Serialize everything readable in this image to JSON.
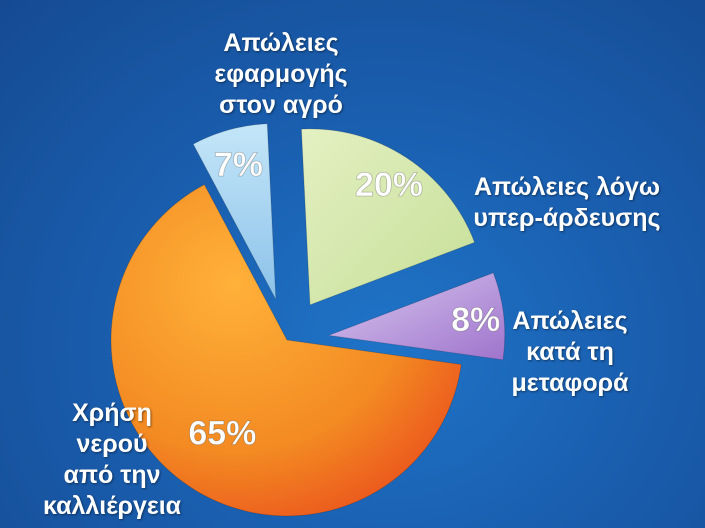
{
  "chart_data": {
    "type": "pie",
    "title": "",
    "slices": [
      {
        "pct_label": "7%",
        "value": 7,
        "label": [
          "Απώλειες",
          "εφαρμογής",
          "στον αγρό"
        ],
        "color": "#aad4f0",
        "exploded": true
      },
      {
        "pct_label": "20%",
        "value": 20,
        "label": [
          "Απώλειες λόγω",
          "υπερ-άρδευσης"
        ],
        "color": "#d8eab0",
        "exploded": true
      },
      {
        "pct_label": "8%",
        "value": 8,
        "label": [
          "Απώλειες",
          "κατά τη",
          "μεταφορά"
        ],
        "color": "#b491d6",
        "exploded": true
      },
      {
        "pct_label": "65%",
        "value": 65,
        "label": [
          "Χρήση",
          "νερού",
          "από την",
          "καλλιέργεια"
        ],
        "color": "#f39526",
        "exploded": false
      }
    ]
  }
}
